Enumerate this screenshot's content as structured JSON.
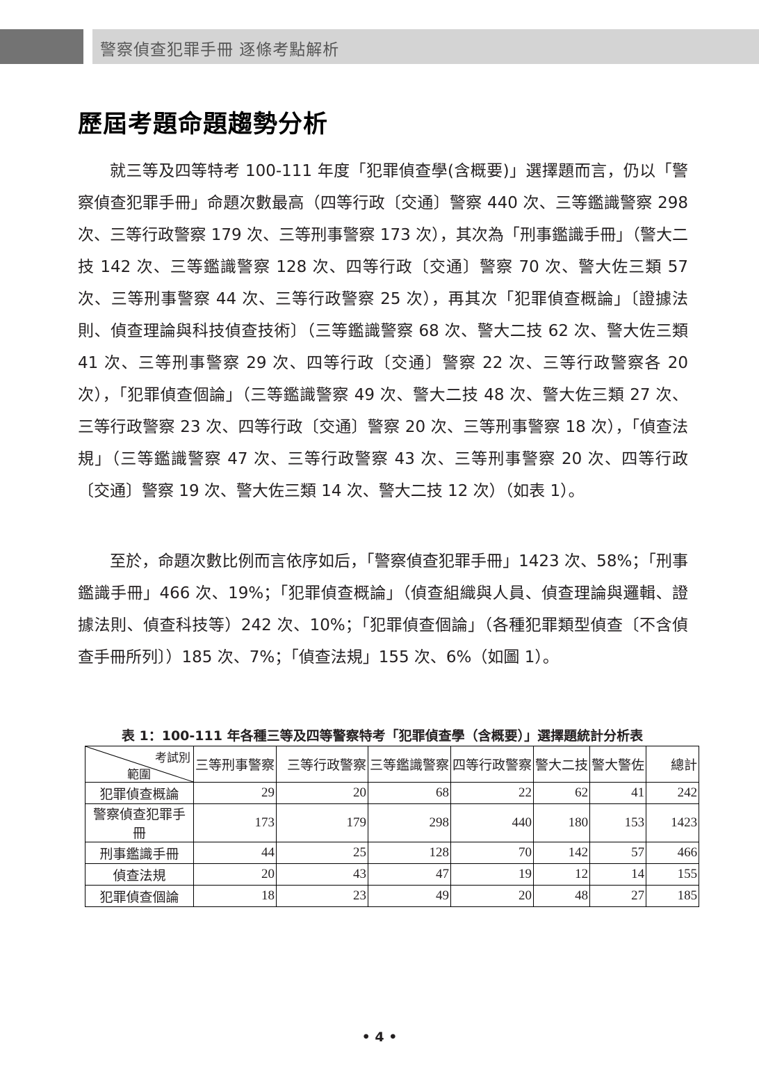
{
  "header": {
    "running_title": "警察偵查犯罪手冊  逐條考點解析"
  },
  "section_title": "歷屆考題命題趨勢分析",
  "paragraphs": [
    "就三等及四等特考 100-111 年度「犯罪偵查學(含概要)」選擇題而言，仍以「警察偵查犯罪手冊」命題次數最高（四等行政〔交通〕警察 440 次、三等鑑識警察 298 次、三等行政警察 179 次、三等刑事警察 173 次），其次為「刑事鑑識手冊」（警大二技 142 次、三等鑑識警察 128 次、四等行政〔交通〕警察 70 次、警大佐三類 57 次、三等刑事警察 44 次、三等行政警察 25 次），再其次「犯罪偵查概論」〔證據法則、偵查理論與科技偵查技術〕（三等鑑識警察 68 次、警大二技 62 次、警大佐三類 41 次、三等刑事警察 29 次、四等行政〔交通〕警察 22 次、三等行政警察各 20 次），「犯罪偵查個論」（三等鑑識警察 49 次、警大二技 48 次、警大佐三類 27 次、三等行政警察 23 次、四等行政〔交通〕警察 20 次、三等刑事警察 18 次），「偵查法規」（三等鑑識警察 47 次、三等行政警察 43 次、三等刑事警察 20 次、四等行政〔交通〕警察 19 次、警大佐三類 14 次、警大二技 12 次）（如表 1）。",
    "至於，命題次數比例而言依序如后，「警察偵查犯罪手冊」1423 次、58%；「刑事鑑識手冊」466 次、19%；「犯罪偵查概論」（偵查組織與人員、偵查理論與邏輯、證據法則、偵查科技等）242 次、10%；「犯罪偵查個論」（各種犯罪類型偵查〔不含偵查手冊所列〕）185 次、7%；「偵查法規」155 次、6%（如圖 1）。"
  ],
  "table": {
    "caption": "表 1：100-111 年各種三等及四等警察特考「犯罪偵查學（含概要）」選擇題統計分析表",
    "corner_top": "考試別",
    "corner_bottom": "範圍",
    "columns": [
      "三等刑事警察",
      "三等行政警察",
      "三等鑑識警察",
      "四等行政警察",
      "警大二技",
      "警大警佐",
      "總計"
    ],
    "rows": [
      {
        "label": "犯罪偵查概論",
        "values": [
          "29",
          "20",
          "68",
          "22",
          "62",
          "41",
          "242"
        ]
      },
      {
        "label": "警察偵查犯罪手冊",
        "values": [
          "173",
          "179",
          "298",
          "440",
          "180",
          "153",
          "1423"
        ]
      },
      {
        "label": "刑事鑑識手冊",
        "values": [
          "44",
          "25",
          "128",
          "70",
          "142",
          "57",
          "466"
        ]
      },
      {
        "label": "偵查法規",
        "values": [
          "20",
          "43",
          "47",
          "19",
          "12",
          "14",
          "155"
        ]
      },
      {
        "label": "犯罪偵查個論",
        "values": [
          "18",
          "23",
          "49",
          "20",
          "48",
          "27",
          "185"
        ]
      }
    ]
  },
  "page_number": "• 4 •"
}
